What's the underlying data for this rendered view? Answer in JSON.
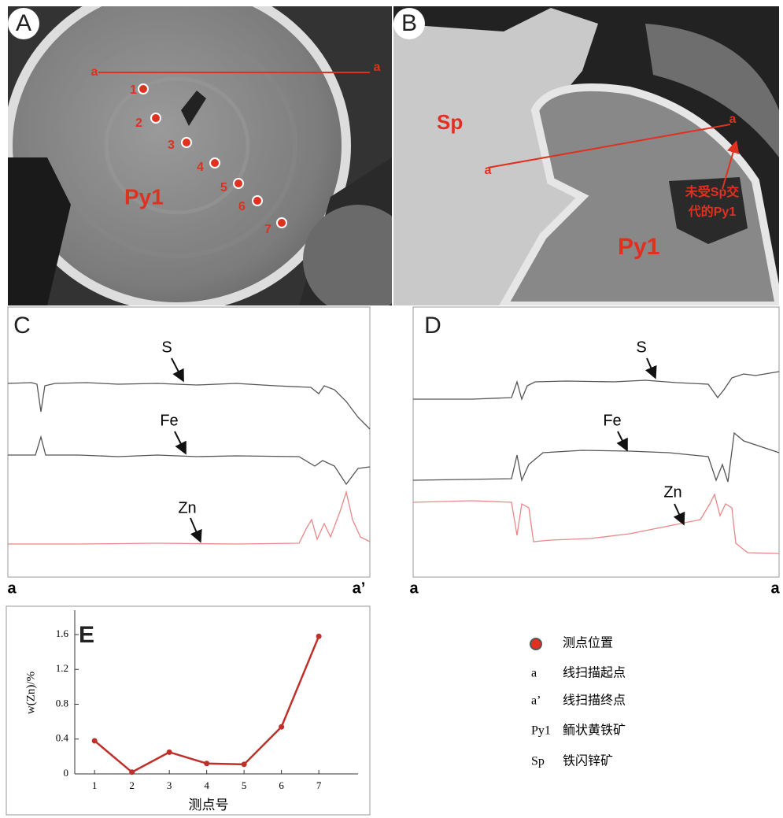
{
  "panels": {
    "A": {
      "label": "A",
      "scan_start": "a",
      "scan_end": "a",
      "points": [
        "1",
        "2",
        "3",
        "4",
        "5",
        "6",
        "7"
      ],
      "mineral": "Py1"
    },
    "B": {
      "label": "B",
      "mineral_sp": "Sp",
      "scan_start": "a",
      "scan_end": "a",
      "annotation": [
        "未受Sp交",
        "代的Py1"
      ],
      "mineral": "Py1"
    },
    "C": {
      "label": "C",
      "elements": [
        "S",
        "Fe",
        "Zn"
      ],
      "start": "a",
      "end": "a’"
    },
    "D": {
      "label": "D",
      "elements": [
        "S",
        "Fe",
        "Zn"
      ],
      "start": "a",
      "end": "a"
    }
  },
  "chart_data": {
    "type": "line",
    "label": "E",
    "y_label": "w(Zn)/%",
    "x_label": "测点号",
    "x": [
      1,
      2,
      3,
      4,
      5,
      6,
      7
    ],
    "values": [
      0.38,
      0.02,
      0.25,
      0.12,
      0.11,
      0.54,
      1.58
    ],
    "color": "#c0302a",
    "xlim": [
      0.47,
      8.05
    ],
    "xticks": [
      1,
      2,
      3,
      4,
      5,
      6,
      7
    ],
    "ylim": [
      0,
      1.88
    ],
    "yticks": [
      0,
      0.4,
      0.8,
      1.2,
      1.6
    ]
  },
  "legend": [
    {
      "text": "测点位置"
    },
    {
      "symbol": "a",
      "text": "线扫描起点"
    },
    {
      "symbol": "a’",
      "text": "线扫描终点"
    },
    {
      "symbol": "Py1",
      "text": "鲕状黄铁矿"
    },
    {
      "symbol": "Sp",
      "text": "铁闪锌矿"
    }
  ]
}
